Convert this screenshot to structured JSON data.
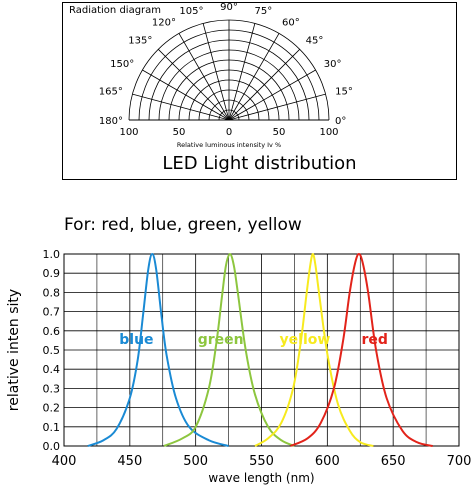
{
  "radiation": {
    "title": "Radiation diagram",
    "caption": "LED Light distribution",
    "inner_label": "Relative luminous intensity Iv %",
    "angle_labels": [
      "0°",
      "15°",
      "30°",
      "45°",
      "60°",
      "75°",
      "90°",
      "105°",
      "120°",
      "135°",
      "150°",
      "165°",
      "180°"
    ],
    "angles": [
      0,
      15,
      30,
      45,
      60,
      75,
      90,
      105,
      120,
      135,
      150,
      165,
      180
    ],
    "axis_labels": [
      "100",
      "50",
      "0",
      "50",
      "100"
    ]
  },
  "for_text": "For: red, blue, green, yellow",
  "chart_data": {
    "type": "line",
    "xlabel": "wave length (nm)",
    "ylabel": "relative inten sity",
    "xlim": [
      400,
      700
    ],
    "ylim": [
      0,
      1.0
    ],
    "x_ticks": [
      400,
      450,
      500,
      550,
      600,
      650,
      700
    ],
    "y_ticks": [
      0.0,
      0.1,
      0.2,
      0.3,
      0.4,
      0.5,
      0.6,
      0.7,
      0.8,
      0.9,
      1.0
    ],
    "grid": true,
    "series": [
      {
        "name": "blue",
        "color": "#1a8ad4",
        "peak": 467,
        "x": [
          418,
          430,
          440,
          450,
          456,
          460,
          464,
          467,
          470,
          474,
          478,
          485,
          495,
          510,
          525
        ],
        "y": [
          0.0,
          0.03,
          0.09,
          0.25,
          0.45,
          0.68,
          0.92,
          1.0,
          0.92,
          0.68,
          0.47,
          0.25,
          0.1,
          0.03,
          0.0
        ]
      },
      {
        "name": "green",
        "color": "#8dc63f",
        "peak": 526,
        "x": [
          476,
          490,
          500,
          510,
          516,
          520,
          523,
          526,
          529,
          532,
          538,
          545,
          555,
          565,
          575
        ],
        "y": [
          0.0,
          0.04,
          0.1,
          0.3,
          0.55,
          0.78,
          0.94,
          1.0,
          0.94,
          0.8,
          0.5,
          0.27,
          0.1,
          0.03,
          0.0
        ]
      },
      {
        "name": "yellow",
        "color": "#f7ea1e",
        "peak": 589,
        "x": [
          545,
          555,
          565,
          574,
          580,
          584,
          587,
          589,
          591,
          594,
          600,
          608,
          617,
          625,
          635
        ],
        "y": [
          0.0,
          0.04,
          0.12,
          0.3,
          0.55,
          0.78,
          0.94,
          1.0,
          0.94,
          0.78,
          0.48,
          0.22,
          0.08,
          0.02,
          0.0
        ]
      },
      {
        "name": "red",
        "color": "#e2231a",
        "peak": 624,
        "x": [
          572,
          585,
          595,
          605,
          612,
          617,
          621,
          624,
          627,
          631,
          637,
          645,
          657,
          668,
          680
        ],
        "y": [
          0.0,
          0.04,
          0.12,
          0.3,
          0.55,
          0.8,
          0.95,
          1.0,
          0.95,
          0.8,
          0.5,
          0.25,
          0.08,
          0.02,
          0.0
        ]
      }
    ],
    "labels": [
      {
        "text": "blue",
        "x": 455,
        "y": 0.53,
        "color": "#1a8ad4"
      },
      {
        "text": "green",
        "x": 519,
        "y": 0.53,
        "color": "#8dc63f"
      },
      {
        "text": "yellow",
        "x": 583,
        "y": 0.53,
        "color": "#f7ea1e"
      },
      {
        "text": "red",
        "x": 636,
        "y": 0.53,
        "color": "#e2231a"
      }
    ]
  }
}
